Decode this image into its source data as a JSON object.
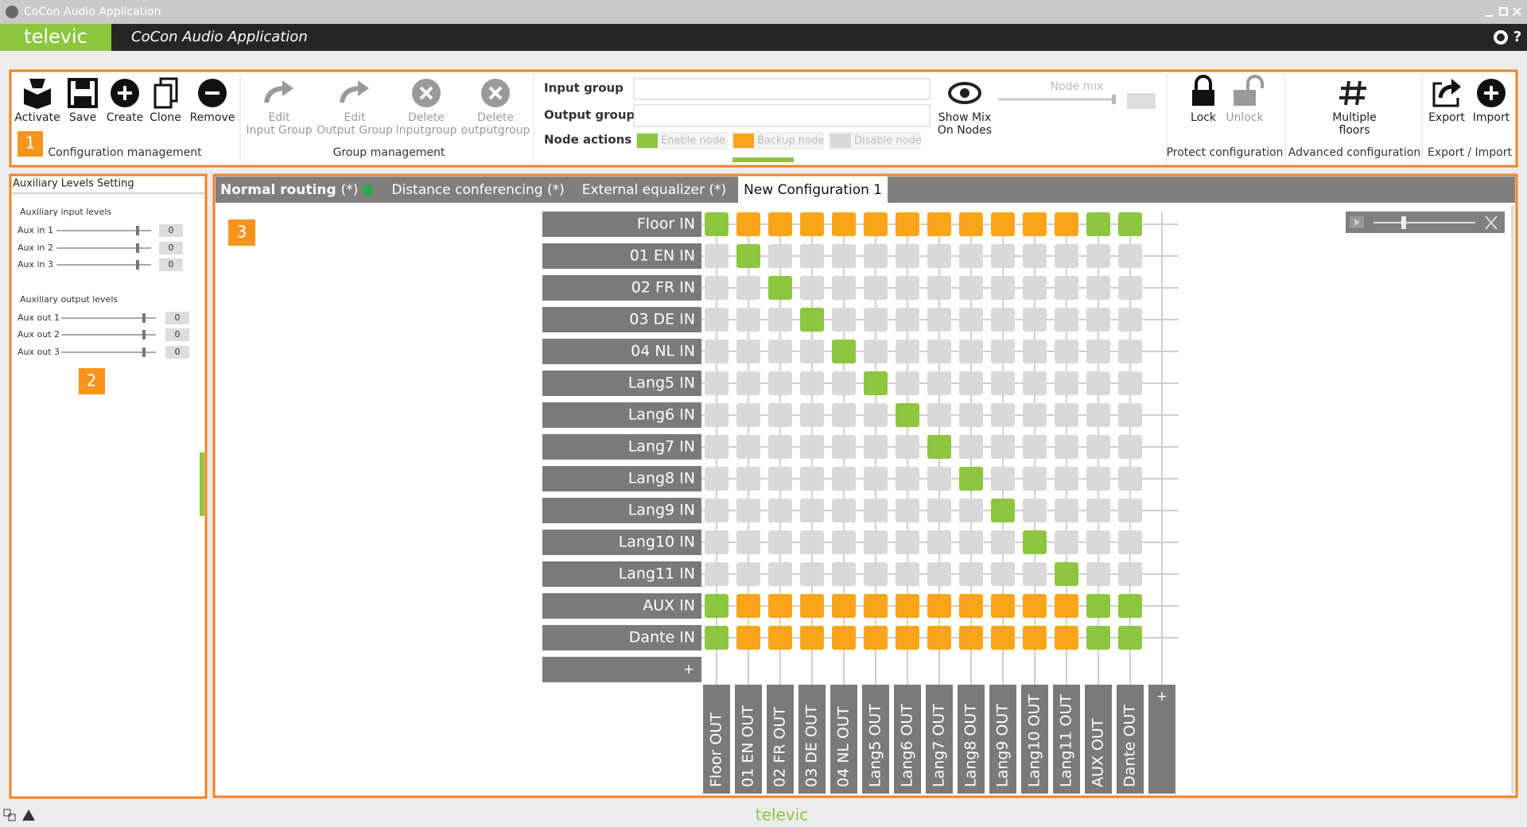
{
  "window": {
    "title": "CoCon Audio Application"
  },
  "header": {
    "brand": "televic",
    "title": "CoCon Audio Application"
  },
  "toolbar": {
    "configuration": {
      "number": "1",
      "buttons": [
        "Activate",
        "Save",
        "Create",
        "Clone",
        "Remove"
      ],
      "caption": "Configuration management"
    },
    "group": {
      "buttons": [
        [
          "Edit",
          "Input Group"
        ],
        [
          "Edit",
          "Output Group"
        ],
        [
          "Delete",
          "Inputgroup"
        ],
        [
          "Delete",
          "outputgroup"
        ]
      ],
      "caption": "Group management"
    },
    "fields": {
      "input_group": "Input group",
      "output_group": "Output group",
      "node_actions": "Node actions",
      "actions": [
        {
          "label": "Enable node",
          "color": "#8dc63f"
        },
        {
          "label": "Backup node",
          "color": "#f9a51a"
        },
        {
          "label": "Disable node",
          "color": "#d9d9d9"
        }
      ]
    },
    "show_mix": [
      "Show Mix",
      "On Nodes"
    ],
    "node_mix": "Node mix",
    "protect": {
      "buttons": [
        "Lock",
        "Unlock"
      ],
      "caption": "Protect configuration"
    },
    "advanced": {
      "button": [
        "Multiple",
        "floors"
      ],
      "caption": "Advanced configuration"
    },
    "export": {
      "buttons": [
        "Export",
        "Import"
      ],
      "caption": "Export / Import"
    }
  },
  "aux_panel": {
    "title": "Auxiliary Levels Setting",
    "number": "2",
    "inputs": {
      "heading": "Auxiliary input levels",
      "items": [
        {
          "label": "Aux in 1",
          "value": 0
        },
        {
          "label": "Aux in 2",
          "value": 0
        },
        {
          "label": "Aux in 3",
          "value": 0
        }
      ]
    },
    "outputs": {
      "heading": "Auxiliary output levels",
      "items": [
        {
          "label": "Aux out 1",
          "value": 0
        },
        {
          "label": "Aux out 2",
          "value": 0
        },
        {
          "label": "Aux out 3",
          "value": 0
        }
      ]
    }
  },
  "routing": {
    "number": "3",
    "tabs": [
      {
        "label": "Normal routing",
        "suffix": "(*)"
      },
      {
        "label": "Distance conferencing (*)"
      },
      {
        "label": "External equalizer (*)"
      },
      {
        "label": "New Configuration 1"
      }
    ],
    "inputs": [
      "Floor IN",
      "01 EN IN",
      "02 FR IN",
      "03 DE IN",
      "04 NL IN",
      "Lang5 IN",
      "Lang6 IN",
      "Lang7 IN",
      "Lang8 IN",
      "Lang9 IN",
      "Lang10 IN",
      "Lang11 IN",
      "AUX IN",
      "Dante IN"
    ],
    "outputs": [
      "Floor OUT",
      "01 EN OUT",
      "02 FR OUT",
      "03 DE OUT",
      "04 NL OUT",
      "Lang5 OUT",
      "Lang6 OUT",
      "Lang7 OUT",
      "Lang8 OUT",
      "Lang9 OUT",
      "Lang10 OUT",
      "Lang11 OUT",
      "AUX OUT",
      "Dante OUT"
    ],
    "add": "+",
    "nodes": [
      [
        "Enable node",
        "Backup node",
        "Backup node",
        "Backup node",
        "Backup node",
        "Backup node",
        "Backup node",
        "Backup node",
        "Backup node",
        "Backup node",
        "Backup node",
        "Backup node",
        "Enable node",
        "Enable node"
      ],
      [
        "Disable node",
        "Enable node",
        "Disable node",
        "Disable node",
        "Disable node",
        "Disable node",
        "Disable node",
        "Disable node",
        "Disable node",
        "Disable node",
        "Disable node",
        "Disable node",
        "Disable node",
        "Disable node"
      ],
      [
        "Disable node",
        "Disable node",
        "Enable node",
        "Disable node",
        "Disable node",
        "Disable node",
        "Disable node",
        "Disable node",
        "Disable node",
        "Disable node",
        "Disable node",
        "Disable node",
        "Disable node",
        "Disable node"
      ],
      [
        "Disable node",
        "Disable node",
        "Disable node",
        "Enable node",
        "Disable node",
        "Disable node",
        "Disable node",
        "Disable node",
        "Disable node",
        "Disable node",
        "Disable node",
        "Disable node",
        "Disable node",
        "Disable node"
      ],
      [
        "Disable node",
        "Disable node",
        "Disable node",
        "Disable node",
        "Enable node",
        "Disable node",
        "Disable node",
        "Disable node",
        "Disable node",
        "Disable node",
        "Disable node",
        "Disable node",
        "Disable node",
        "Disable node"
      ],
      [
        "Disable node",
        "Disable node",
        "Disable node",
        "Disable node",
        "Disable node",
        "Enable node",
        "Disable node",
        "Disable node",
        "Disable node",
        "Disable node",
        "Disable node",
        "Disable node",
        "Disable node",
        "Disable node"
      ],
      [
        "Disable node",
        "Disable node",
        "Disable node",
        "Disable node",
        "Disable node",
        "Disable node",
        "Enable node",
        "Disable node",
        "Disable node",
        "Disable node",
        "Disable node",
        "Disable node",
        "Disable node",
        "Disable node"
      ],
      [
        "Disable node",
        "Disable node",
        "Disable node",
        "Disable node",
        "Disable node",
        "Disable node",
        "Disable node",
        "Enable node",
        "Disable node",
        "Disable node",
        "Disable node",
        "Disable node",
        "Disable node",
        "Disable node"
      ],
      [
        "Disable node",
        "Disable node",
        "Disable node",
        "Disable node",
        "Disable node",
        "Disable node",
        "Disable node",
        "Disable node",
        "Enable node",
        "Disable node",
        "Disable node",
        "Disable node",
        "Disable node",
        "Disable node"
      ],
      [
        "Disable node",
        "Disable node",
        "Disable node",
        "Disable node",
        "Disable node",
        "Disable node",
        "Disable node",
        "Disable node",
        "Disable node",
        "Enable node",
        "Disable node",
        "Disable node",
        "Disable node",
        "Disable node"
      ],
      [
        "Disable node",
        "Disable node",
        "Disable node",
        "Disable node",
        "Disable node",
        "Disable node",
        "Disable node",
        "Disable node",
        "Disable node",
        "Disable node",
        "Enable node",
        "Disable node",
        "Disable node",
        "Disable node"
      ],
      [
        "Disable node",
        "Disable node",
        "Disable node",
        "Disable node",
        "Disable node",
        "Disable node",
        "Disable node",
        "Disable node",
        "Disable node",
        "Disable node",
        "Disable node",
        "Enable node",
        "Disable node",
        "Disable node"
      ],
      [
        "Enable node",
        "Backup node",
        "Backup node",
        "Backup node",
        "Backup node",
        "Backup node",
        "Backup node",
        "Backup node",
        "Backup node",
        "Backup node",
        "Backup node",
        "Backup node",
        "Enable node",
        "Enable node"
      ],
      [
        "Enable node",
        "Backup node",
        "Backup node",
        "Backup node",
        "Backup node",
        "Backup node",
        "Backup node",
        "Backup node",
        "Backup node",
        "Backup node",
        "Backup node",
        "Backup node",
        "Enable node",
        "Enable node"
      ]
    ]
  },
  "status": {
    "brand": "televic"
  }
}
